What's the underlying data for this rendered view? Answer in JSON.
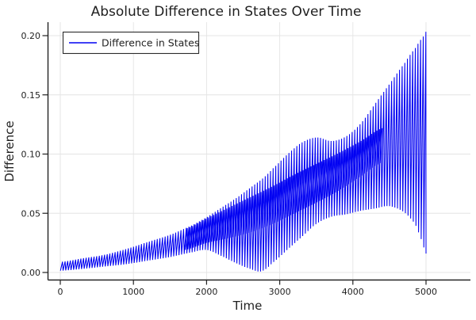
{
  "chart": {
    "title": "Absolute Difference in States Over Time",
    "xlabel": "Time",
    "ylabel": "Difference",
    "legend_label": "Difference in States"
  },
  "chart_data": {
    "type": "line",
    "title": "Absolute Difference in States Over Time",
    "xlabel": "Time",
    "ylabel": "Difference",
    "series": [
      {
        "name": "Difference in States",
        "color": "#0000ff"
      }
    ],
    "xlim": [
      0,
      5000
    ],
    "ylim": [
      0,
      0.205
    ],
    "x_ticks": [
      0,
      1000,
      2000,
      3000,
      4000,
      5000
    ],
    "x_tick_labels": [
      "0",
      "1000",
      "2000",
      "3000",
      "4000",
      "5000"
    ],
    "y_ticks": [
      0,
      0.05,
      0.1,
      0.15,
      0.2
    ],
    "y_tick_labels": [
      "0.00",
      "0.05",
      "0.10",
      "0.15",
      "0.20"
    ],
    "grid": true,
    "legend_position": "top-left",
    "oscillation_period_time_units": 33,
    "envelope_note": "Series oscillates rapidly; keypoints are [time, lower_envelope, upper_envelope] read from the figure.",
    "outer_envelope": [
      [
        0,
        0.0015,
        0.009
      ],
      [
        300,
        0.003,
        0.012
      ],
      [
        600,
        0.005,
        0.015
      ],
      [
        900,
        0.007,
        0.02
      ],
      [
        1200,
        0.01,
        0.026
      ],
      [
        1500,
        0.013,
        0.032
      ],
      [
        1800,
        0.017,
        0.04
      ],
      [
        2000,
        0.019,
        0.047
      ],
      [
        2200,
        0.014,
        0.055
      ],
      [
        2400,
        0.008,
        0.063
      ],
      [
        2600,
        0.003,
        0.072
      ],
      [
        2750,
        0.001,
        0.079
      ],
      [
        2900,
        0.008,
        0.088
      ],
      [
        3100,
        0.019,
        0.1
      ],
      [
        3300,
        0.03,
        0.11
      ],
      [
        3500,
        0.041,
        0.114
      ],
      [
        3700,
        0.047,
        0.111
      ],
      [
        3900,
        0.049,
        0.115
      ],
      [
        4100,
        0.052,
        0.126
      ],
      [
        4300,
        0.054,
        0.143
      ],
      [
        4500,
        0.056,
        0.16
      ],
      [
        4700,
        0.051,
        0.177
      ],
      [
        4850,
        0.041,
        0.19
      ],
      [
        4950,
        0.026,
        0.199
      ],
      [
        5000,
        0.016,
        0.204
      ]
    ],
    "inner_dense_band": [
      [
        1700,
        0.019,
        0.037
      ],
      [
        2000,
        0.025,
        0.046
      ],
      [
        2300,
        0.029,
        0.055
      ],
      [
        2600,
        0.034,
        0.064
      ],
      [
        2900,
        0.041,
        0.073
      ],
      [
        3200,
        0.05,
        0.083
      ],
      [
        3500,
        0.059,
        0.092
      ],
      [
        3800,
        0.069,
        0.101
      ],
      [
        4100,
        0.081,
        0.111
      ],
      [
        4400,
        0.093,
        0.122
      ]
    ],
    "colors": {
      "line": "#0000f2",
      "grid": "#e4e4e4",
      "axis": "#222222",
      "text": "#1f1f1f",
      "background": "#ffffff"
    }
  }
}
